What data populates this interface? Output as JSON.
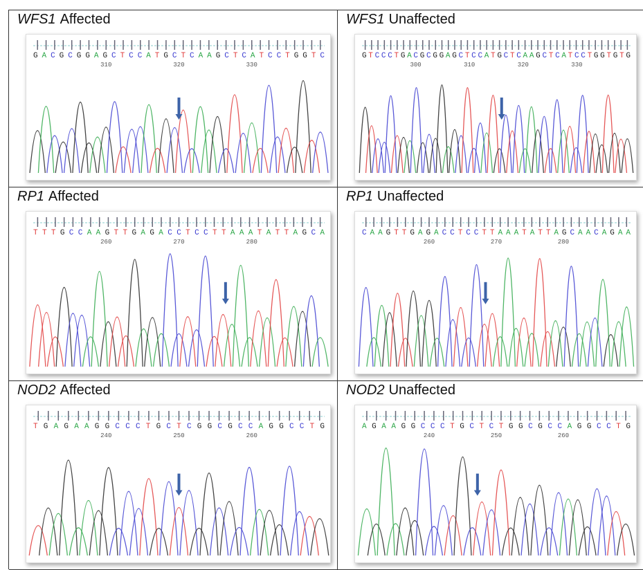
{
  "panels": [
    {
      "gene": "WFS1",
      "status": "Affected",
      "sequence": "GACGCGGAGCTCCATGCTCAAGCTCATCCTGGTC",
      "positions": [
        310,
        320,
        330
      ]
    },
    {
      "gene": "WFS1",
      "status": "Unaffected",
      "sequence": "GTCCCTGACGCGGAGCTCCATGCTCAAGCTCATCCTGGTGTG",
      "positions": [
        300,
        310,
        320,
        330
      ]
    },
    {
      "gene": "RP1",
      "status": "Affected",
      "sequence": "TTTGCCAAGTTGAGACCTCCTTAAATATTAGCA",
      "positions": [
        260,
        270,
        280
      ]
    },
    {
      "gene": "RP1",
      "status": "Unaffected",
      "sequence": "CAAGTTGAGACCTCCTTAAATATTAGCAACAGAA",
      "positions": [
        260,
        270,
        280
      ]
    },
    {
      "gene": "NOD2",
      "status": "Affected",
      "sequence": "TGAGAAGGCCCTGCTCGGCGCCAGGCCTG",
      "positions": [
        240,
        250,
        260
      ]
    },
    {
      "gene": "NOD2",
      "status": "Unaffected",
      "sequence": "AGAAGGCCCTGCTCTGGCGCCAGGCCTG",
      "positions": [
        240,
        250,
        260
      ]
    }
  ]
}
